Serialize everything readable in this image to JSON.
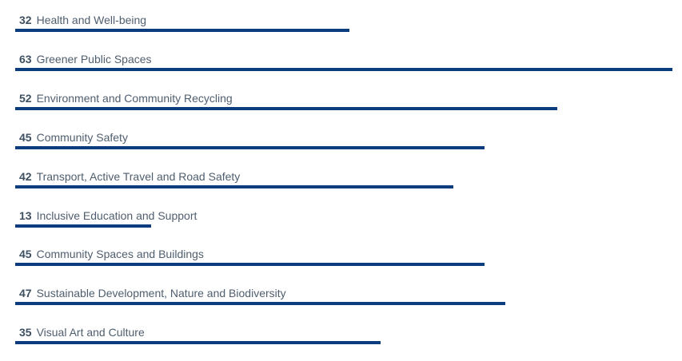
{
  "chart_data": {
    "type": "bar",
    "orientation": "horizontal",
    "categories": [
      "Health and Well-being",
      "Greener Public Spaces",
      "Environment and Community Recycling",
      "Community Safety",
      "Transport, Active Travel and Road Safety",
      "Inclusive Education and Support",
      "Community Spaces and Buildings",
      "Sustainable Development, Nature and Biodiversity",
      "Visual Art and Culture"
    ],
    "values": [
      32,
      63,
      52,
      45,
      42,
      13,
      45,
      47,
      35
    ],
    "xlim": [
      0,
      63
    ],
    "grid": false,
    "legend": "none",
    "bar_color": "#0b3c7d"
  }
}
